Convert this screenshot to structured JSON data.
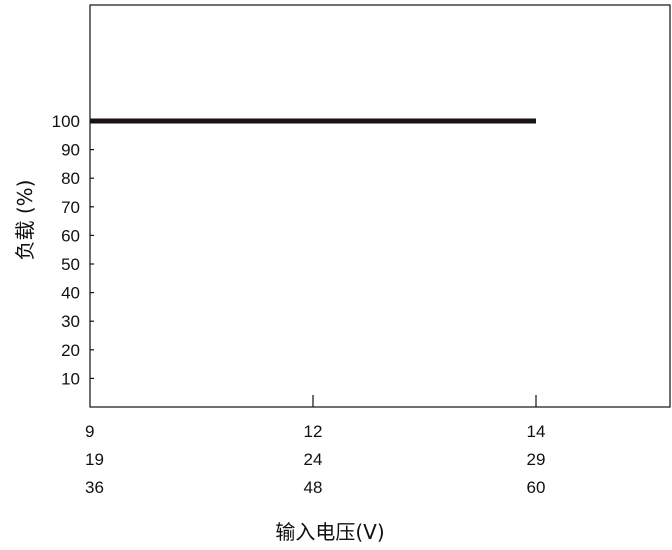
{
  "chart_data": {
    "type": "line",
    "ylabel": "负载 (%)",
    "xlabel": "输入电压(V)",
    "y_ticks": [
      10,
      20,
      30,
      40,
      50,
      60,
      70,
      80,
      90,
      100
    ],
    "ylim": [
      0,
      140
    ],
    "x_positions": [
      0,
      1,
      2,
      2.6
    ],
    "x_tick_rows": [
      [
        "9",
        "12",
        "14"
      ],
      [
        "19",
        "24",
        "29"
      ],
      [
        "36",
        "48",
        "60"
      ]
    ],
    "x_tick_at": [
      0,
      1,
      2
    ],
    "series": [
      {
        "points": [
          [
            0,
            100
          ],
          [
            2,
            100
          ]
        ],
        "color": "#1a1212"
      }
    ],
    "grid": false
  }
}
